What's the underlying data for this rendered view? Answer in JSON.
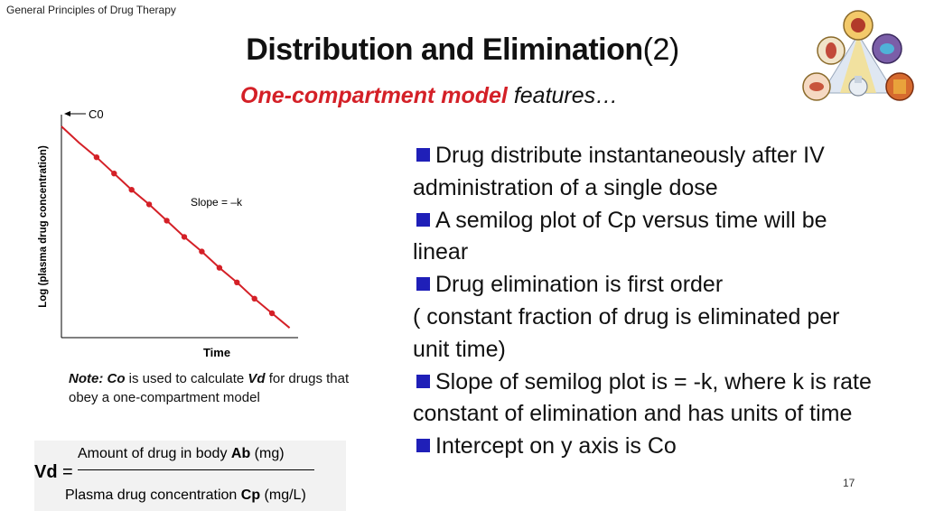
{
  "header": {
    "label": "General Principles of Drug Therapy"
  },
  "title": {
    "main": "Distribution and Elimination",
    "suffix": "(2)"
  },
  "subtitle": {
    "highlight": "One-compartment model",
    "rest": " features…"
  },
  "chart_data": {
    "type": "line",
    "xlabel": "Time",
    "ylabel": "Log (plasma drug concentration)",
    "intercept_label": "C0",
    "slope_label": "Slope = –k",
    "series": [
      {
        "x": [
          0,
          1,
          2,
          3,
          4,
          5,
          6,
          7,
          8,
          9,
          10,
          11,
          12,
          13
        ],
        "y": [
          13.0,
          12.0,
          11.1,
          10.1,
          9.1,
          8.2,
          7.2,
          6.2,
          5.3,
          4.3,
          3.4,
          2.4,
          1.5,
          0.6
        ]
      }
    ],
    "marker_x": [
      2,
      3,
      4,
      5,
      6,
      7,
      8,
      9,
      10,
      11,
      12
    ],
    "xlim": [
      0,
      14
    ],
    "ylim": [
      0,
      14
    ],
    "color": "#d42027"
  },
  "note": {
    "prefix": "Note:  ",
    "co": "Co",
    "mid": " is used to calculate ",
    "vd": "Vd",
    "suffix": " for drugs that obey a one-compartment model"
  },
  "formula": {
    "lhs": "Vd",
    "eq": "=",
    "numerator_text": "Amount of drug in body ",
    "numerator_symbol": "Ab",
    "numerator_unit": " (mg)",
    "denominator_text": "Plasma drug concentration ",
    "denominator_symbol": "Cp",
    "denominator_unit": "  (mg/L)"
  },
  "bullets": [
    [
      "Drug distribute instantaneously after IV",
      "administration of a single dose"
    ],
    [
      "A semilog plot of Cp versus time will be",
      "linear"
    ],
    [
      "Drug elimination is first order",
      "( constant fraction of drug is eliminated per",
      "unit time)"
    ],
    [
      "Slope of semilog plot is = -k, where k is rate",
      "constant of elimination and has units of time"
    ],
    [
      "Intercept on y axis is Co"
    ]
  ],
  "bullet_color": "#1f1fb8",
  "slide_number": "17"
}
